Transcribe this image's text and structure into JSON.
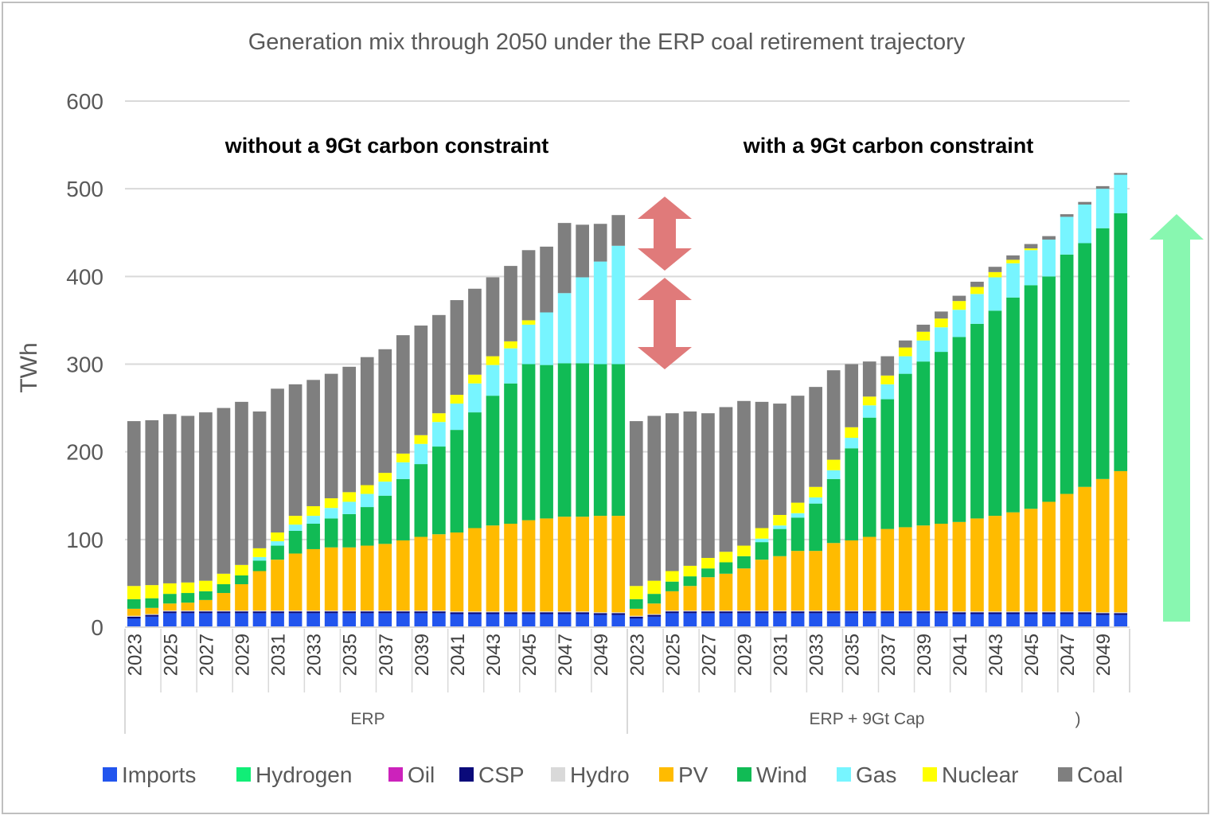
{
  "chart_data": {
    "type": "bar",
    "stacked": true,
    "title": "Generation mix through 2050 under the ERP coal retirement trajectory",
    "ylabel": "TWh",
    "xlabel": "",
    "ylim": [
      0,
      600
    ],
    "yticks": [
      0,
      100,
      200,
      300,
      400,
      500,
      600
    ],
    "grid": true,
    "legend_position": "bottom",
    "groups": [
      {
        "label": "ERP",
        "annotation": "without a 9Gt carbon constraint",
        "years": [
          2023,
          2024,
          2025,
          2026,
          2027,
          2028,
          2029,
          2030,
          2031,
          2032,
          2033,
          2034,
          2035,
          2036,
          2037,
          2038,
          2039,
          2040,
          2041,
          2042,
          2043,
          2044,
          2045,
          2046,
          2047,
          2048,
          2049,
          2050
        ],
        "tick_labels": [
          "2023",
          "2025",
          "2027",
          "2029",
          "2031",
          "2033",
          "2035",
          "2037",
          "2039",
          "2041",
          "2043",
          "2045",
          "2047",
          "2049"
        ],
        "series": [
          {
            "name": "Imports",
            "values": [
              10,
              12,
              16,
              16,
              16,
              16,
              16,
              16,
              16,
              16,
              16,
              16,
              16,
              16,
              16,
              16,
              16,
              16,
              15,
              15,
              15,
              15,
              15,
              15,
              15,
              15,
              14,
              14
            ]
          },
          {
            "name": "Hydrogen",
            "values": [
              0,
              0,
              0,
              0,
              0,
              0,
              0,
              0,
              0,
              0,
              0,
              0,
              0,
              0,
              0,
              0,
              0,
              0,
              0,
              0,
              0,
              0,
              0,
              0,
              0,
              0,
              0,
              0
            ]
          },
          {
            "name": "Oil",
            "values": [
              0,
              0,
              0,
              0,
              0,
              0,
              0,
              0,
              0,
              0,
              0,
              0,
              0,
              0,
              0,
              0,
              0,
              0,
              0,
              0,
              0,
              0,
              0,
              0,
              0,
              0,
              0,
              0
            ]
          },
          {
            "name": "CSP",
            "values": [
              2,
              2,
              2,
              2,
              2,
              2,
              2,
              2,
              2,
              2,
              2,
              2,
              2,
              2,
              2,
              2,
              2,
              2,
              2,
              2,
              2,
              2,
              2,
              2,
              2,
              2,
              2,
              2
            ]
          },
          {
            "name": "Hydro",
            "values": [
              1,
              1,
              1,
              1,
              1,
              1,
              1,
              1,
              1,
              1,
              1,
              1,
              1,
              1,
              1,
              1,
              1,
              1,
              1,
              1,
              1,
              1,
              1,
              1,
              1,
              1,
              1,
              1
            ]
          },
          {
            "name": "PV",
            "values": [
              8,
              7,
              8,
              9,
              12,
              20,
              30,
              45,
              58,
              65,
              70,
              72,
              72,
              74,
              76,
              80,
              84,
              87,
              90,
              95,
              98,
              100,
              104,
              106,
              108,
              108,
              110,
              110
            ]
          },
          {
            "name": "Wind",
            "values": [
              11,
              11,
              11,
              11,
              10,
              10,
              10,
              12,
              16,
              26,
              29,
              33,
              38,
              44,
              55,
              70,
              83,
              100,
              117,
              132,
              148,
              160,
              178,
              175,
              175,
              175,
              173,
              173
            ]
          },
          {
            "name": "Gas",
            "values": [
              0,
              0,
              0,
              0,
              0,
              0,
              0,
              4,
              5,
              7,
              9,
              12,
              14,
              15,
              16,
              19,
              23,
              28,
              30,
              33,
              35,
              40,
              45,
              60,
              80,
              98,
              117,
              135
            ]
          },
          {
            "name": "Nuclear",
            "values": [
              15,
              15,
              12,
              12,
              12,
              12,
              12,
              10,
              10,
              10,
              11,
              11,
              11,
              10,
              10,
              10,
              10,
              10,
              10,
              10,
              10,
              8,
              5,
              0,
              0,
              0,
              0,
              0
            ]
          },
          {
            "name": "Coal",
            "values": [
              188,
              188,
              193,
              190,
              192,
              189,
              186,
              156,
              164,
              150,
              144,
              142,
              143,
              146,
              141,
              135,
              125,
              112,
              108,
              98,
              90,
              86,
              80,
              75,
              80,
              60,
              43,
              35
            ]
          }
        ]
      },
      {
        "label": "ERP + 9Gt Cap",
        "annotation": "with a 9Gt carbon constraint",
        "years": [
          2023,
          2024,
          2025,
          2026,
          2027,
          2028,
          2029,
          2030,
          2031,
          2032,
          2033,
          2034,
          2035,
          2036,
          2037,
          2038,
          2039,
          2040,
          2041,
          2042,
          2043,
          2044,
          2045,
          2046,
          2047,
          2048,
          2049,
          2050
        ],
        "tick_labels": [
          "2023",
          "2025",
          "2027",
          "2029",
          "2031",
          "2033",
          "2035",
          "2037",
          "2039",
          "2041",
          "2043",
          "2045",
          "2047",
          "2049"
        ],
        "series": [
          {
            "name": "Imports",
            "values": [
              10,
              12,
              16,
              16,
              16,
              16,
              16,
              16,
              16,
              16,
              16,
              16,
              16,
              16,
              16,
              16,
              16,
              16,
              15,
              15,
              15,
              15,
              15,
              15,
              15,
              15,
              14,
              14
            ]
          },
          {
            "name": "Hydrogen",
            "values": [
              0,
              0,
              0,
              0,
              0,
              0,
              0,
              0,
              0,
              0,
              0,
              0,
              0,
              0,
              0,
              0,
              0,
              0,
              0,
              0,
              0,
              0,
              0,
              0,
              0,
              0,
              0,
              0
            ]
          },
          {
            "name": "Oil",
            "values": [
              0,
              0,
              0,
              0,
              0,
              0,
              0,
              0,
              0,
              0,
              0,
              0,
              0,
              0,
              0,
              0,
              0,
              0,
              0,
              0,
              0,
              0,
              0,
              0,
              0,
              0,
              0,
              0
            ]
          },
          {
            "name": "CSP",
            "values": [
              2,
              2,
              2,
              2,
              2,
              2,
              2,
              2,
              2,
              2,
              2,
              2,
              2,
              2,
              2,
              2,
              2,
              2,
              2,
              2,
              2,
              2,
              2,
              2,
              2,
              2,
              2,
              2
            ]
          },
          {
            "name": "Hydro",
            "values": [
              1,
              1,
              1,
              1,
              1,
              1,
              1,
              1,
              1,
              1,
              1,
              1,
              1,
              1,
              1,
              1,
              1,
              1,
              1,
              1,
              1,
              1,
              1,
              1,
              1,
              1,
              1,
              1
            ]
          },
          {
            "name": "PV",
            "values": [
              8,
              12,
              22,
              28,
              38,
              42,
              48,
              58,
              62,
              68,
              68,
              77,
              80,
              84,
              93,
              95,
              97,
              99,
              102,
              106,
              109,
              113,
              117,
              125,
              134,
              142,
              152,
              161
            ]
          },
          {
            "name": "Wind",
            "values": [
              11,
              11,
              11,
              11,
              10,
              13,
              14,
              20,
              31,
              38,
              54,
              73,
              105,
              136,
              148,
              175,
              187,
              196,
              211,
              222,
              234,
              245,
              255,
              257,
              273,
              278,
              286,
              294
            ]
          },
          {
            "name": "Gas",
            "values": [
              0,
              0,
              0,
              0,
              0,
              0,
              0,
              4,
              4,
              5,
              7,
              10,
              12,
              14,
              17,
              20,
              24,
              28,
              31,
              34,
              38,
              39,
              40,
              42,
              43,
              44,
              45,
              44
            ]
          },
          {
            "name": "Nuclear",
            "values": [
              15,
              15,
              12,
              12,
              12,
              12,
              12,
              12,
              12,
              12,
              12,
              12,
              12,
              10,
              10,
              10,
              10,
              10,
              10,
              8,
              6,
              4,
              2,
              0,
              0,
              0,
              0,
              0
            ]
          },
          {
            "name": "Coal",
            "values": [
              188,
              188,
              180,
              176,
              165,
              165,
              165,
              144,
              127,
              122,
              114,
              102,
              72,
              40,
              22,
              8,
              8,
              8,
              6,
              6,
              6,
              5,
              5,
              4,
              3,
              3,
              3,
              2
            ]
          }
        ]
      }
    ],
    "colors": {
      "Imports": "#2255ee",
      "Hydrogen": "#11ee77",
      "Oil": "#cc22bb",
      "CSP": "#0a0a7a",
      "Hydro": "#d9d9d9",
      "PV": "#ffbb00",
      "Wind": "#11bb55",
      "Gas": "#77f5ff",
      "Nuclear": "#ffff00",
      "Coal": "#7f7f7f"
    },
    "arrow_colors": {
      "gap_arrow": "#e07a7a",
      "growth_arrow": "#88f7b0"
    },
    "legend": [
      "Imports",
      "Hydrogen",
      "Oil",
      "CSP",
      "Hydro",
      "PV",
      "Wind",
      "Gas",
      "Nuclear",
      "Coal"
    ],
    "footnote_mark": ")"
  }
}
